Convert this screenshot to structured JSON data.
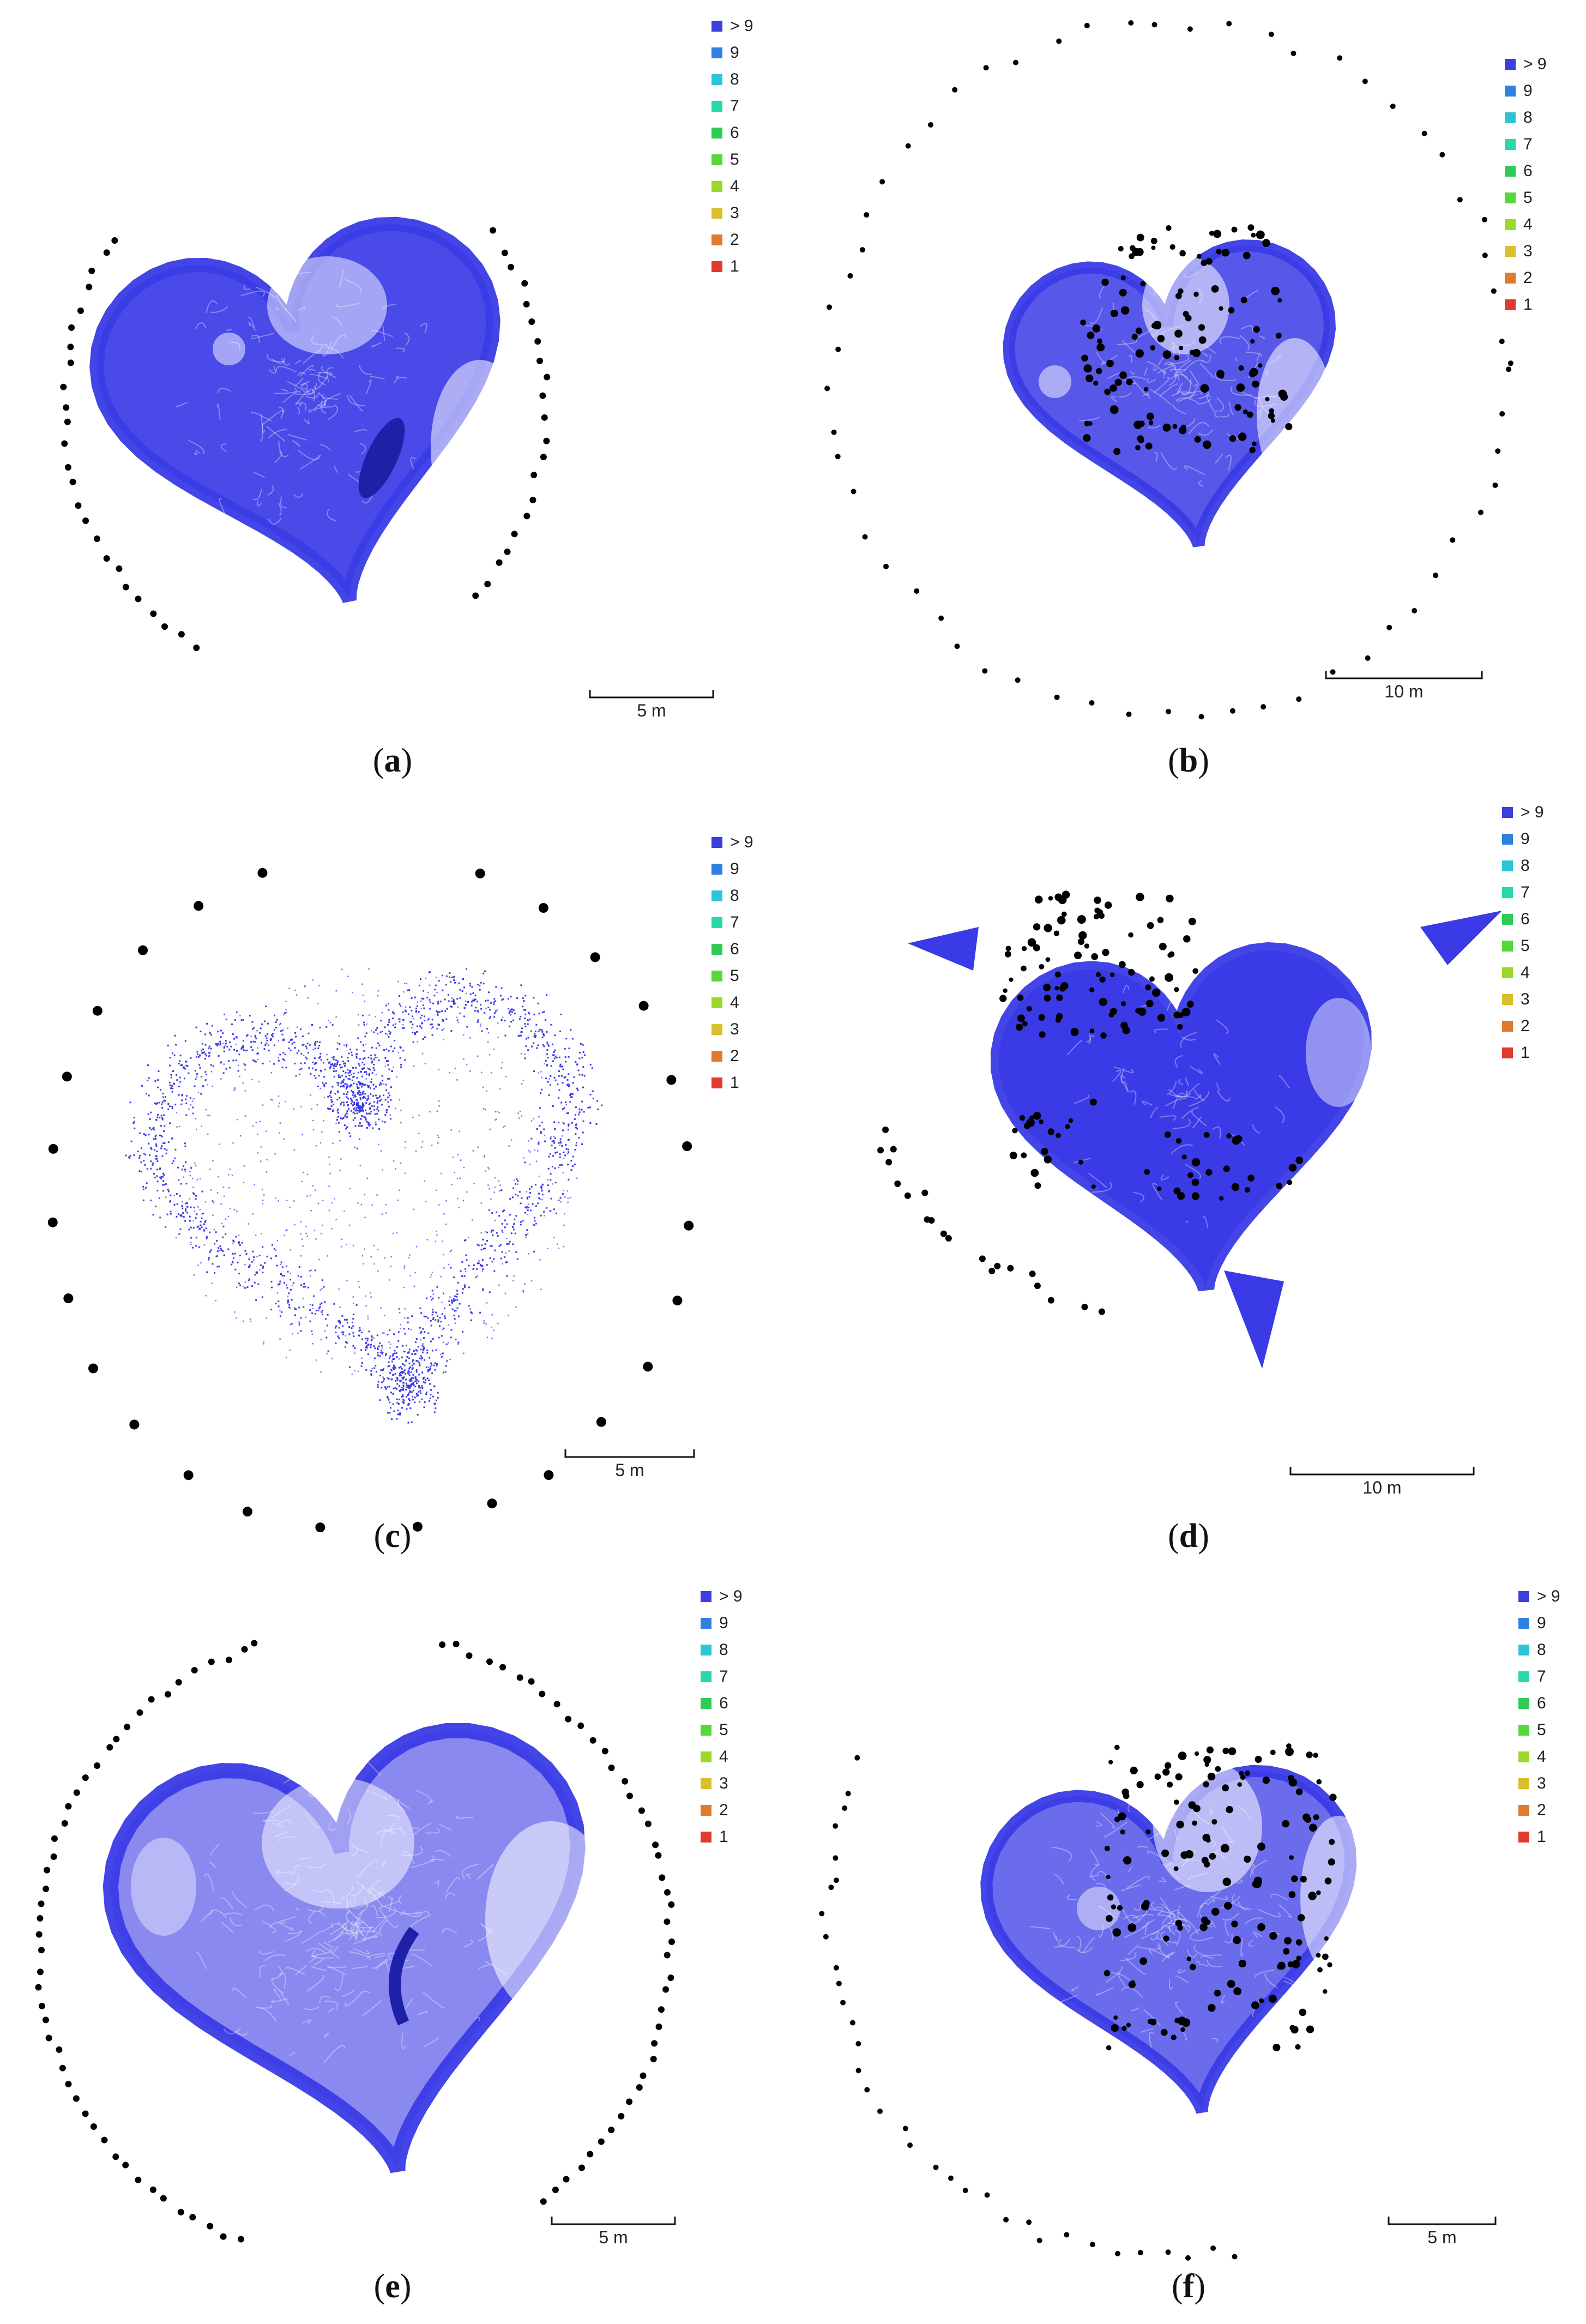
{
  "legend_colors": [
    "#3b3fe0",
    "#2f80e0",
    "#2ec4d8",
    "#28d8a8",
    "#2ecc55",
    "#55d83a",
    "#9ad82c",
    "#d8c02c",
    "#e07a2c",
    "#e03a2c"
  ],
  "point_color": "#3a3be6",
  "marker_color": "#000000",
  "panels": [
    {
      "id": "a",
      "caption": "a",
      "scale_label": "5 m",
      "legend": [
        "> 9",
        "9",
        "8",
        "7",
        "6",
        "5",
        "4",
        "3",
        "2",
        "1"
      ]
    },
    {
      "id": "b",
      "caption": "b",
      "scale_label": "10 m",
      "legend": [
        "> 9",
        "9",
        "8",
        "7",
        "6",
        "5",
        "4",
        "3",
        "2",
        "1"
      ]
    },
    {
      "id": "c",
      "caption": "c",
      "scale_label": "5 m",
      "legend": [
        "> 9",
        "9",
        "8",
        "7",
        "6",
        "5",
        "4",
        "3",
        "2",
        "1"
      ]
    },
    {
      "id": "d",
      "caption": "d",
      "scale_label": "10 m",
      "legend": [
        "> 9",
        "9",
        "8",
        "7",
        "6",
        "5",
        "4",
        "3",
        "2",
        "1"
      ]
    },
    {
      "id": "e",
      "caption": "e",
      "scale_label": "5 m",
      "legend": [
        "> 9",
        "9",
        "8",
        "7",
        "6",
        "5",
        "4",
        "3",
        "2",
        "1"
      ]
    },
    {
      "id": "f",
      "caption": "f",
      "scale_label": "5 m",
      "legend": [
        "> 9",
        "9",
        "8",
        "7",
        "6",
        "5",
        "4",
        "3",
        "2",
        "1"
      ]
    }
  ]
}
